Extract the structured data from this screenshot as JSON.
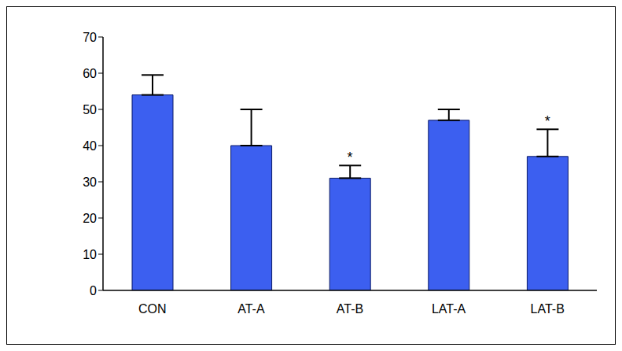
{
  "chart_data": {
    "type": "bar",
    "categories": [
      "CON",
      "AT-A",
      "AT-B",
      "LAT-A",
      "LAT-B"
    ],
    "values": [
      54,
      40,
      31,
      47,
      37
    ],
    "errors": [
      5.5,
      10,
      3.5,
      3,
      7.5
    ],
    "color": "#3c5ff0",
    "ylim": [
      0,
      70
    ],
    "yticks": [
      0,
      10,
      20,
      30,
      40,
      50,
      60,
      70
    ],
    "grid": false,
    "annotations": [
      {
        "category": "AT-B",
        "text": "*"
      },
      {
        "category": "LAT-B",
        "text": "*"
      }
    ]
  }
}
